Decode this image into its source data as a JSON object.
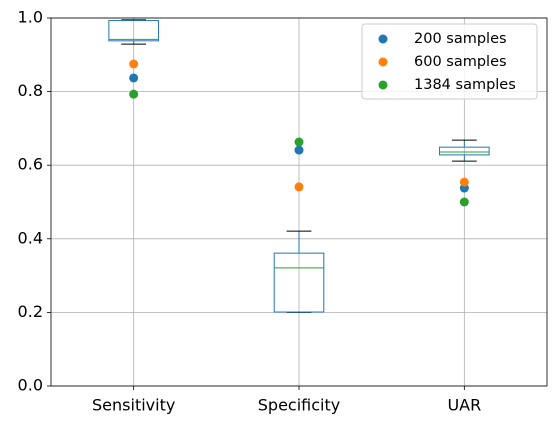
{
  "chart_data": {
    "type": "box",
    "categories": [
      "Sensitivity",
      "Specificity",
      "UAR"
    ],
    "boxes": [
      {
        "min": 0.929,
        "q1": 0.938,
        "median": 0.942,
        "q3": 0.993,
        "max": 0.995
      },
      {
        "min": 0.2,
        "q1": 0.201,
        "median": 0.321,
        "q3": 0.361,
        "max": 0.421
      },
      {
        "min": 0.611,
        "q1": 0.628,
        "median": 0.636,
        "q3": 0.649,
        "max": 0.668
      }
    ],
    "box_color": "#1f77b4",
    "median_color": "#2ca02c",
    "whisker_color": "#000000",
    "series": [
      {
        "name": "200 samples",
        "color": "#1f77b4",
        "values": [
          0.837,
          0.641,
          0.538
        ]
      },
      {
        "name": "600 samples",
        "color": "#ff7f0e",
        "values": [
          0.875,
          0.541,
          0.554
        ]
      },
      {
        "name": "1384 samples",
        "color": "#2ca02c",
        "values": [
          0.793,
          0.663,
          0.5
        ]
      }
    ],
    "ylim": [
      0,
      1
    ],
    "yticks": [
      {
        "value": 0,
        "label": "0.0"
      },
      0.2,
      0.4,
      0.6,
      0.8,
      {
        "value": 1,
        "label": "1.0"
      }
    ],
    "grid": true,
    "legend": "upper right"
  }
}
